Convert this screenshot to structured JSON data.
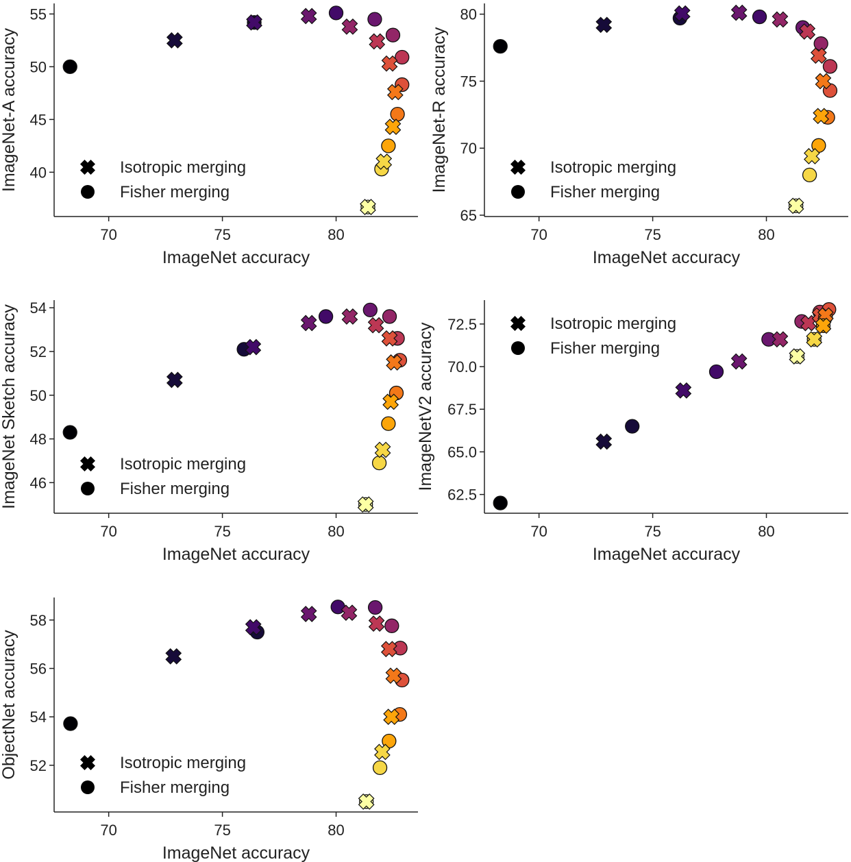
{
  "colormap": [
    "#000004",
    "#160b39",
    "#420a68",
    "#6a176e",
    "#932667",
    "#bc3754",
    "#dd513a",
    "#f37819",
    "#fca50a",
    "#f6d746",
    "#fcffa4"
  ],
  "chart_data": [
    {
      "type": "scatter",
      "xlabel": "ImageNet accuracy",
      "ylabel": "ImageNet-A accuracy",
      "xlim": [
        67.6,
        83.6
      ],
      "ylim": [
        35.8,
        56.0
      ],
      "xticks": [
        70,
        75,
        80
      ],
      "yticks": [
        40,
        45,
        50,
        55
      ],
      "legend_placement": "lower-left",
      "grid": false,
      "series": [
        {
          "name": "Isotropic merging",
          "marker": "x",
          "color_start_index": 1,
          "x": [
            72.9,
            76.4,
            78.8,
            80.6,
            81.8,
            82.35,
            82.6,
            82.5,
            82.1,
            81.4
          ],
          "y": [
            52.5,
            54.2,
            54.8,
            53.8,
            52.4,
            50.3,
            47.6,
            44.3,
            41.0,
            36.7
          ]
        },
        {
          "name": "Fisher merging",
          "marker": "circle",
          "color_start_index": 0,
          "x": [
            68.3,
            76.4,
            80.0,
            81.7,
            82.5,
            82.9,
            82.9,
            82.7,
            82.3,
            82.0,
            81.4
          ],
          "y": [
            50.0,
            54.2,
            55.1,
            54.5,
            53.0,
            50.9,
            48.3,
            45.5,
            42.5,
            40.3,
            36.7
          ]
        }
      ]
    },
    {
      "type": "scatter",
      "xlabel": "ImageNet accuracy",
      "ylabel": "ImageNet-R accuracy",
      "xlim": [
        67.6,
        83.6
      ],
      "ylim": [
        64.9,
        80.8
      ],
      "xticks": [
        70,
        75,
        80
      ],
      "yticks": [
        65,
        70,
        75,
        80
      ],
      "legend_placement": "lower-left",
      "grid": false,
      "series": [
        {
          "name": "Isotropic merging",
          "marker": "x",
          "color_start_index": 1,
          "x": [
            72.85,
            76.3,
            78.8,
            80.6,
            81.8,
            82.3,
            82.5,
            82.4,
            82.0,
            81.3
          ],
          "y": [
            79.2,
            80.05,
            80.1,
            79.6,
            78.7,
            76.9,
            75.0,
            72.4,
            69.4,
            65.7
          ]
        },
        {
          "name": "Fisher merging",
          "marker": "circle",
          "color_start_index": 0,
          "x": [
            68.3,
            76.2,
            79.7,
            81.6,
            82.4,
            82.8,
            82.8,
            82.7,
            82.3,
            81.9,
            81.3
          ],
          "y": [
            77.6,
            79.7,
            79.8,
            79.0,
            77.8,
            76.1,
            74.3,
            72.3,
            70.2,
            68.0,
            65.7
          ]
        }
      ]
    },
    {
      "type": "scatter",
      "xlabel": "ImageNet accuracy",
      "ylabel": "ImageNet Sketch accuracy",
      "xlim": [
        67.6,
        83.6
      ],
      "ylim": [
        44.6,
        54.35
      ],
      "xticks": [
        70,
        75,
        80
      ],
      "yticks": [
        46,
        48,
        50,
        52,
        54
      ],
      "legend_placement": "lower-left",
      "grid": false,
      "series": [
        {
          "name": "Isotropic merging",
          "marker": "x",
          "color_start_index": 1,
          "x": [
            72.9,
            76.35,
            78.8,
            80.6,
            81.75,
            82.35,
            82.55,
            82.4,
            82.05,
            81.3
          ],
          "y": [
            50.7,
            52.2,
            53.3,
            53.6,
            53.2,
            52.6,
            51.5,
            49.7,
            47.5,
            45.0
          ]
        },
        {
          "name": "Fisher merging",
          "marker": "circle",
          "color_start_index": 0,
          "x": [
            68.3,
            75.95,
            79.55,
            81.5,
            82.35,
            82.7,
            82.8,
            82.65,
            82.3,
            81.9,
            81.3
          ],
          "y": [
            48.3,
            52.1,
            53.6,
            53.9,
            53.6,
            52.6,
            51.6,
            50.1,
            48.7,
            46.9,
            45.0
          ]
        }
      ]
    },
    {
      "type": "scatter",
      "xlabel": "ImageNet accuracy",
      "ylabel": "ImageNetV2 accuracy",
      "xlim": [
        67.6,
        83.6
      ],
      "ylim": [
        61.4,
        73.9
      ],
      "xticks": [
        70,
        75,
        80
      ],
      "yticks": [
        62.5,
        65.0,
        67.5,
        70.0,
        72.5
      ],
      "legend_placement": "upper-left",
      "grid": false,
      "series": [
        {
          "name": "Isotropic merging",
          "marker": "x",
          "color_start_index": 1,
          "x": [
            72.85,
            76.35,
            78.8,
            80.6,
            81.85,
            82.35,
            82.6,
            82.5,
            82.1,
            81.35
          ],
          "y": [
            65.6,
            68.6,
            70.3,
            71.6,
            72.55,
            73.0,
            73.0,
            72.4,
            71.6,
            70.6
          ]
        },
        {
          "name": "Fisher merging",
          "marker": "circle",
          "color_start_index": 0,
          "x": [
            68.3,
            74.1,
            77.8,
            80.1,
            81.55,
            82.35,
            82.75,
            82.6,
            82.5,
            82.1,
            81.35
          ],
          "y": [
            62.0,
            66.5,
            69.7,
            71.6,
            72.65,
            73.2,
            73.35,
            72.9,
            72.4,
            71.6,
            70.6
          ]
        }
      ]
    },
    {
      "type": "scatter",
      "xlabel": "ImageNet accuracy",
      "ylabel": "ObjectNet accuracy",
      "xlim": [
        67.6,
        83.6
      ],
      "ylim": [
        50.07,
        58.93
      ],
      "xticks": [
        70,
        75,
        80
      ],
      "yticks": [
        52,
        54,
        56,
        58
      ],
      "legend_placement": "lower-left",
      "grid": false,
      "series": [
        {
          "name": "Isotropic merging",
          "marker": "x",
          "color_start_index": 1,
          "x": [
            72.85,
            76.36,
            78.8,
            80.57,
            81.78,
            82.33,
            82.53,
            82.43,
            82.03,
            81.33
          ],
          "y": [
            56.5,
            57.7,
            58.25,
            58.3,
            57.85,
            56.8,
            55.7,
            54.0,
            52.55,
            50.5
          ]
        },
        {
          "name": "Fisher merging",
          "marker": "circle",
          "color_start_index": 0,
          "x": [
            68.32,
            76.53,
            80.08,
            81.72,
            82.45,
            82.82,
            82.9,
            82.8,
            82.33,
            81.93,
            81.33
          ],
          "y": [
            53.72,
            57.5,
            58.54,
            58.52,
            57.76,
            56.84,
            55.52,
            54.1,
            53.0,
            51.9,
            50.5
          ]
        }
      ]
    }
  ]
}
